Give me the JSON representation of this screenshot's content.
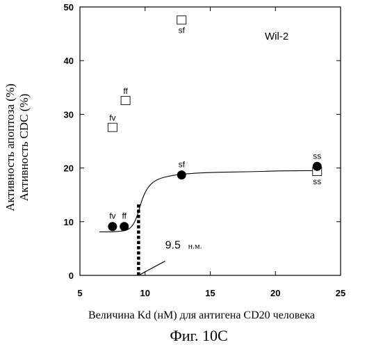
{
  "chart_data": {
    "type": "scatter",
    "title": "",
    "cell_line_label": "Wil-2",
    "xlabel": "Величина Kd (нМ) для антигена CD20 человека",
    "ylabel_lines": [
      "Активность апоптоза (%)",
      "Активность CDC (%)"
    ],
    "xlim": [
      5,
      25
    ],
    "ylim": [
      0,
      50
    ],
    "x_ticks": [
      5,
      10,
      15,
      20,
      25
    ],
    "y_ticks": [
      0,
      10,
      20,
      30,
      40,
      50
    ],
    "grid": false,
    "series": [
      {
        "marker": "open-square",
        "points": [
          {
            "x": 7.5,
            "y": 27.5,
            "label": "fv"
          },
          {
            "x": 8.5,
            "y": 32.5,
            "label": "ff"
          },
          {
            "x": 12.8,
            "y": 47.5,
            "label": "sf"
          },
          {
            "x": 23.2,
            "y": 19.3,
            "label": "ss"
          }
        ]
      },
      {
        "marker": "filled-circle",
        "points": [
          {
            "x": 7.5,
            "y": 9.1,
            "label": "fv"
          },
          {
            "x": 8.4,
            "y": 9.1,
            "label": "ff"
          },
          {
            "x": 12.8,
            "y": 18.7,
            "label": "sf"
          },
          {
            "x": 23.2,
            "y": 20.3,
            "label": "ss"
          }
        ]
      }
    ],
    "fit_curve": [
      [
        6.5,
        8.1
      ],
      [
        7.5,
        8.1
      ],
      [
        8.5,
        8.3
      ],
      [
        9.0,
        9.0
      ],
      [
        9.4,
        11.0
      ],
      [
        9.8,
        14.5
      ],
      [
        10.3,
        16.8
      ],
      [
        11.0,
        18.0
      ],
      [
        12.0,
        18.6
      ],
      [
        13.0,
        18.9
      ],
      [
        15.0,
        19.2
      ],
      [
        18.0,
        19.3
      ],
      [
        21.0,
        19.5
      ],
      [
        23.5,
        19.5
      ]
    ],
    "threshold_x": 9.5,
    "threshold_y_top": 13.5,
    "annotation": {
      "value": "9.5",
      "unit": "н.м.",
      "x": 12.5,
      "y": 5.0
    }
  },
  "caption": "Фиг. 10С"
}
